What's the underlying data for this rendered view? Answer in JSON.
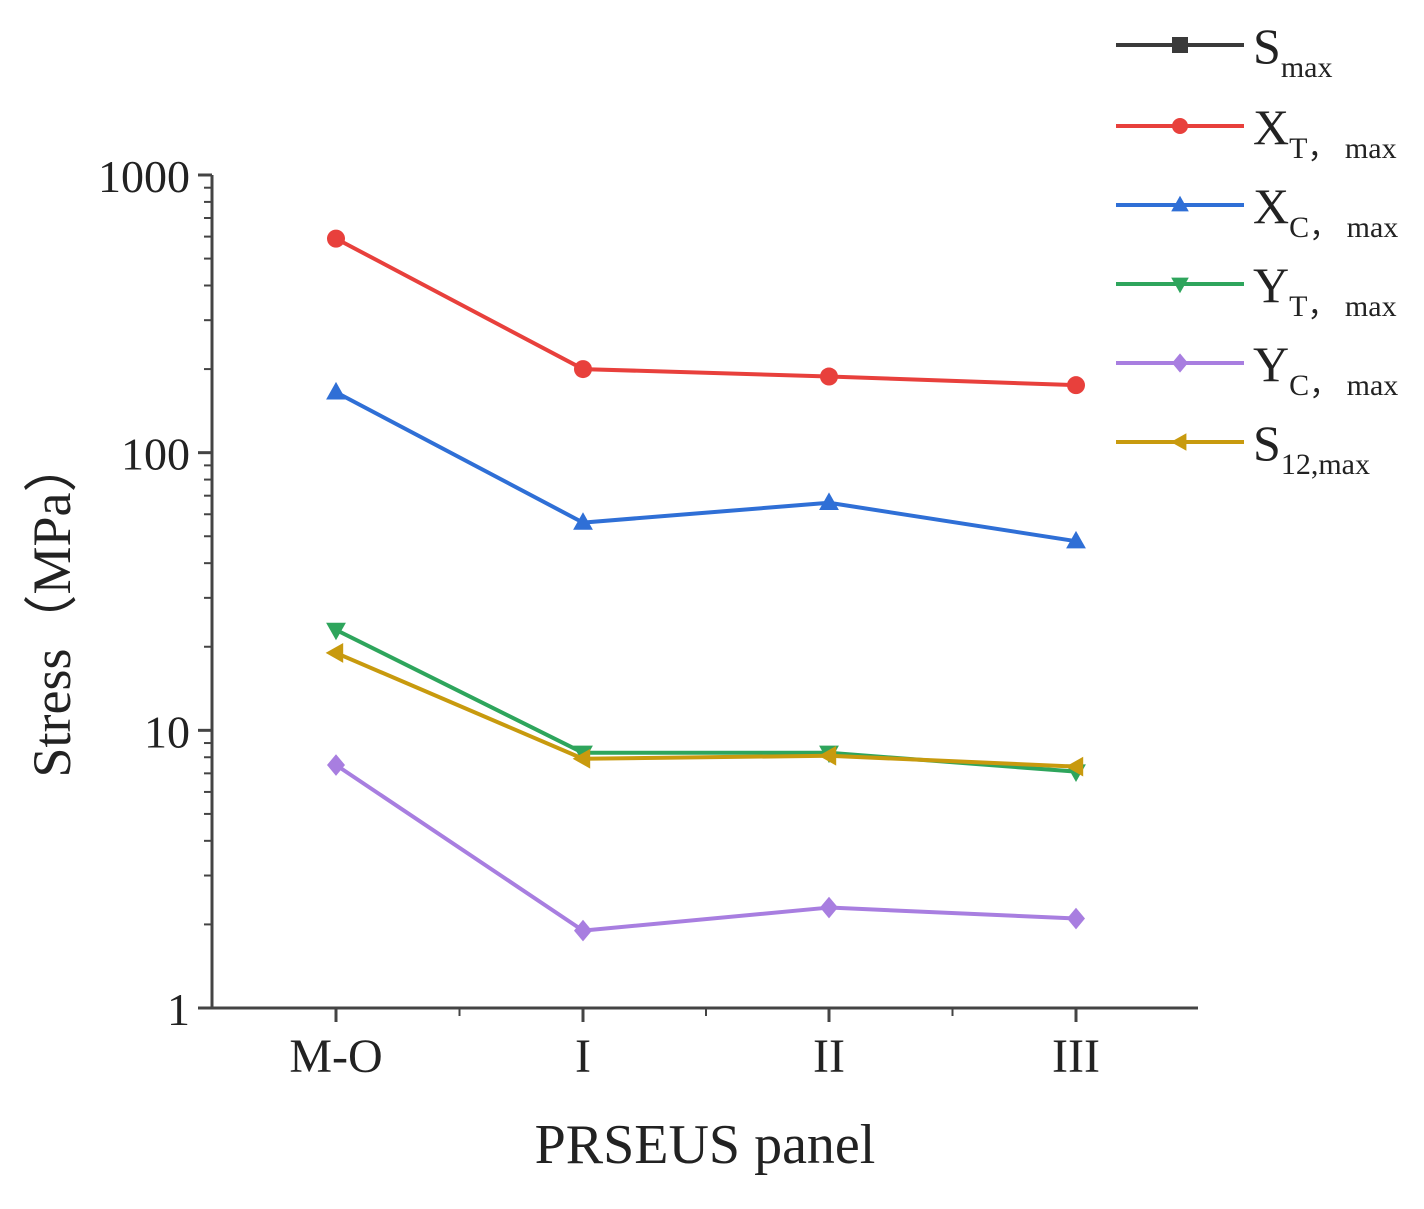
{
  "chart_data": {
    "type": "line",
    "title": "",
    "xlabel": "PRSEUS panel",
    "ylabel": "Stress（MPa）",
    "yscale": "log",
    "ylim": [
      1,
      1000
    ],
    "yticks": [
      1,
      10,
      100,
      1000
    ],
    "ytick_labels": [
      "1",
      "10",
      "100",
      "1000"
    ],
    "categories": [
      "M-O",
      "I",
      "II",
      "III"
    ],
    "legend_position": "top-right",
    "series": [
      {
        "name": "S_max",
        "label_main": "S",
        "label_sub": "max",
        "color": "#3a3a3a",
        "marker": "square",
        "values": [
          null,
          null,
          null,
          null
        ]
      },
      {
        "name": "X_T,max",
        "label_main": "X",
        "label_sub": "T， max",
        "color": "#e8403c",
        "marker": "circle",
        "values": [
          590,
          200,
          188,
          175
        ]
      },
      {
        "name": "X_C,max",
        "label_main": "X",
        "label_sub": "C， max",
        "color": "#2f6fd6",
        "marker": "triangle-up",
        "values": [
          165,
          56,
          66,
          48
        ]
      },
      {
        "name": "Y_T,max",
        "label_main": "Y",
        "label_sub": "T， max",
        "color": "#2ea55c",
        "marker": "triangle-down",
        "values": [
          23,
          8.3,
          8.3,
          7.1
        ]
      },
      {
        "name": "Y_C,max",
        "label_main": "Y",
        "label_sub": "C， max",
        "color": "#a87ee0",
        "marker": "diamond",
        "values": [
          7.5,
          1.9,
          2.3,
          2.1
        ]
      },
      {
        "name": "S_12,max",
        "label_main": "S",
        "label_sub": "12,max",
        "color": "#c89a0e",
        "marker": "triangle-left",
        "values": [
          19,
          7.9,
          8.1,
          7.4
        ]
      }
    ]
  }
}
